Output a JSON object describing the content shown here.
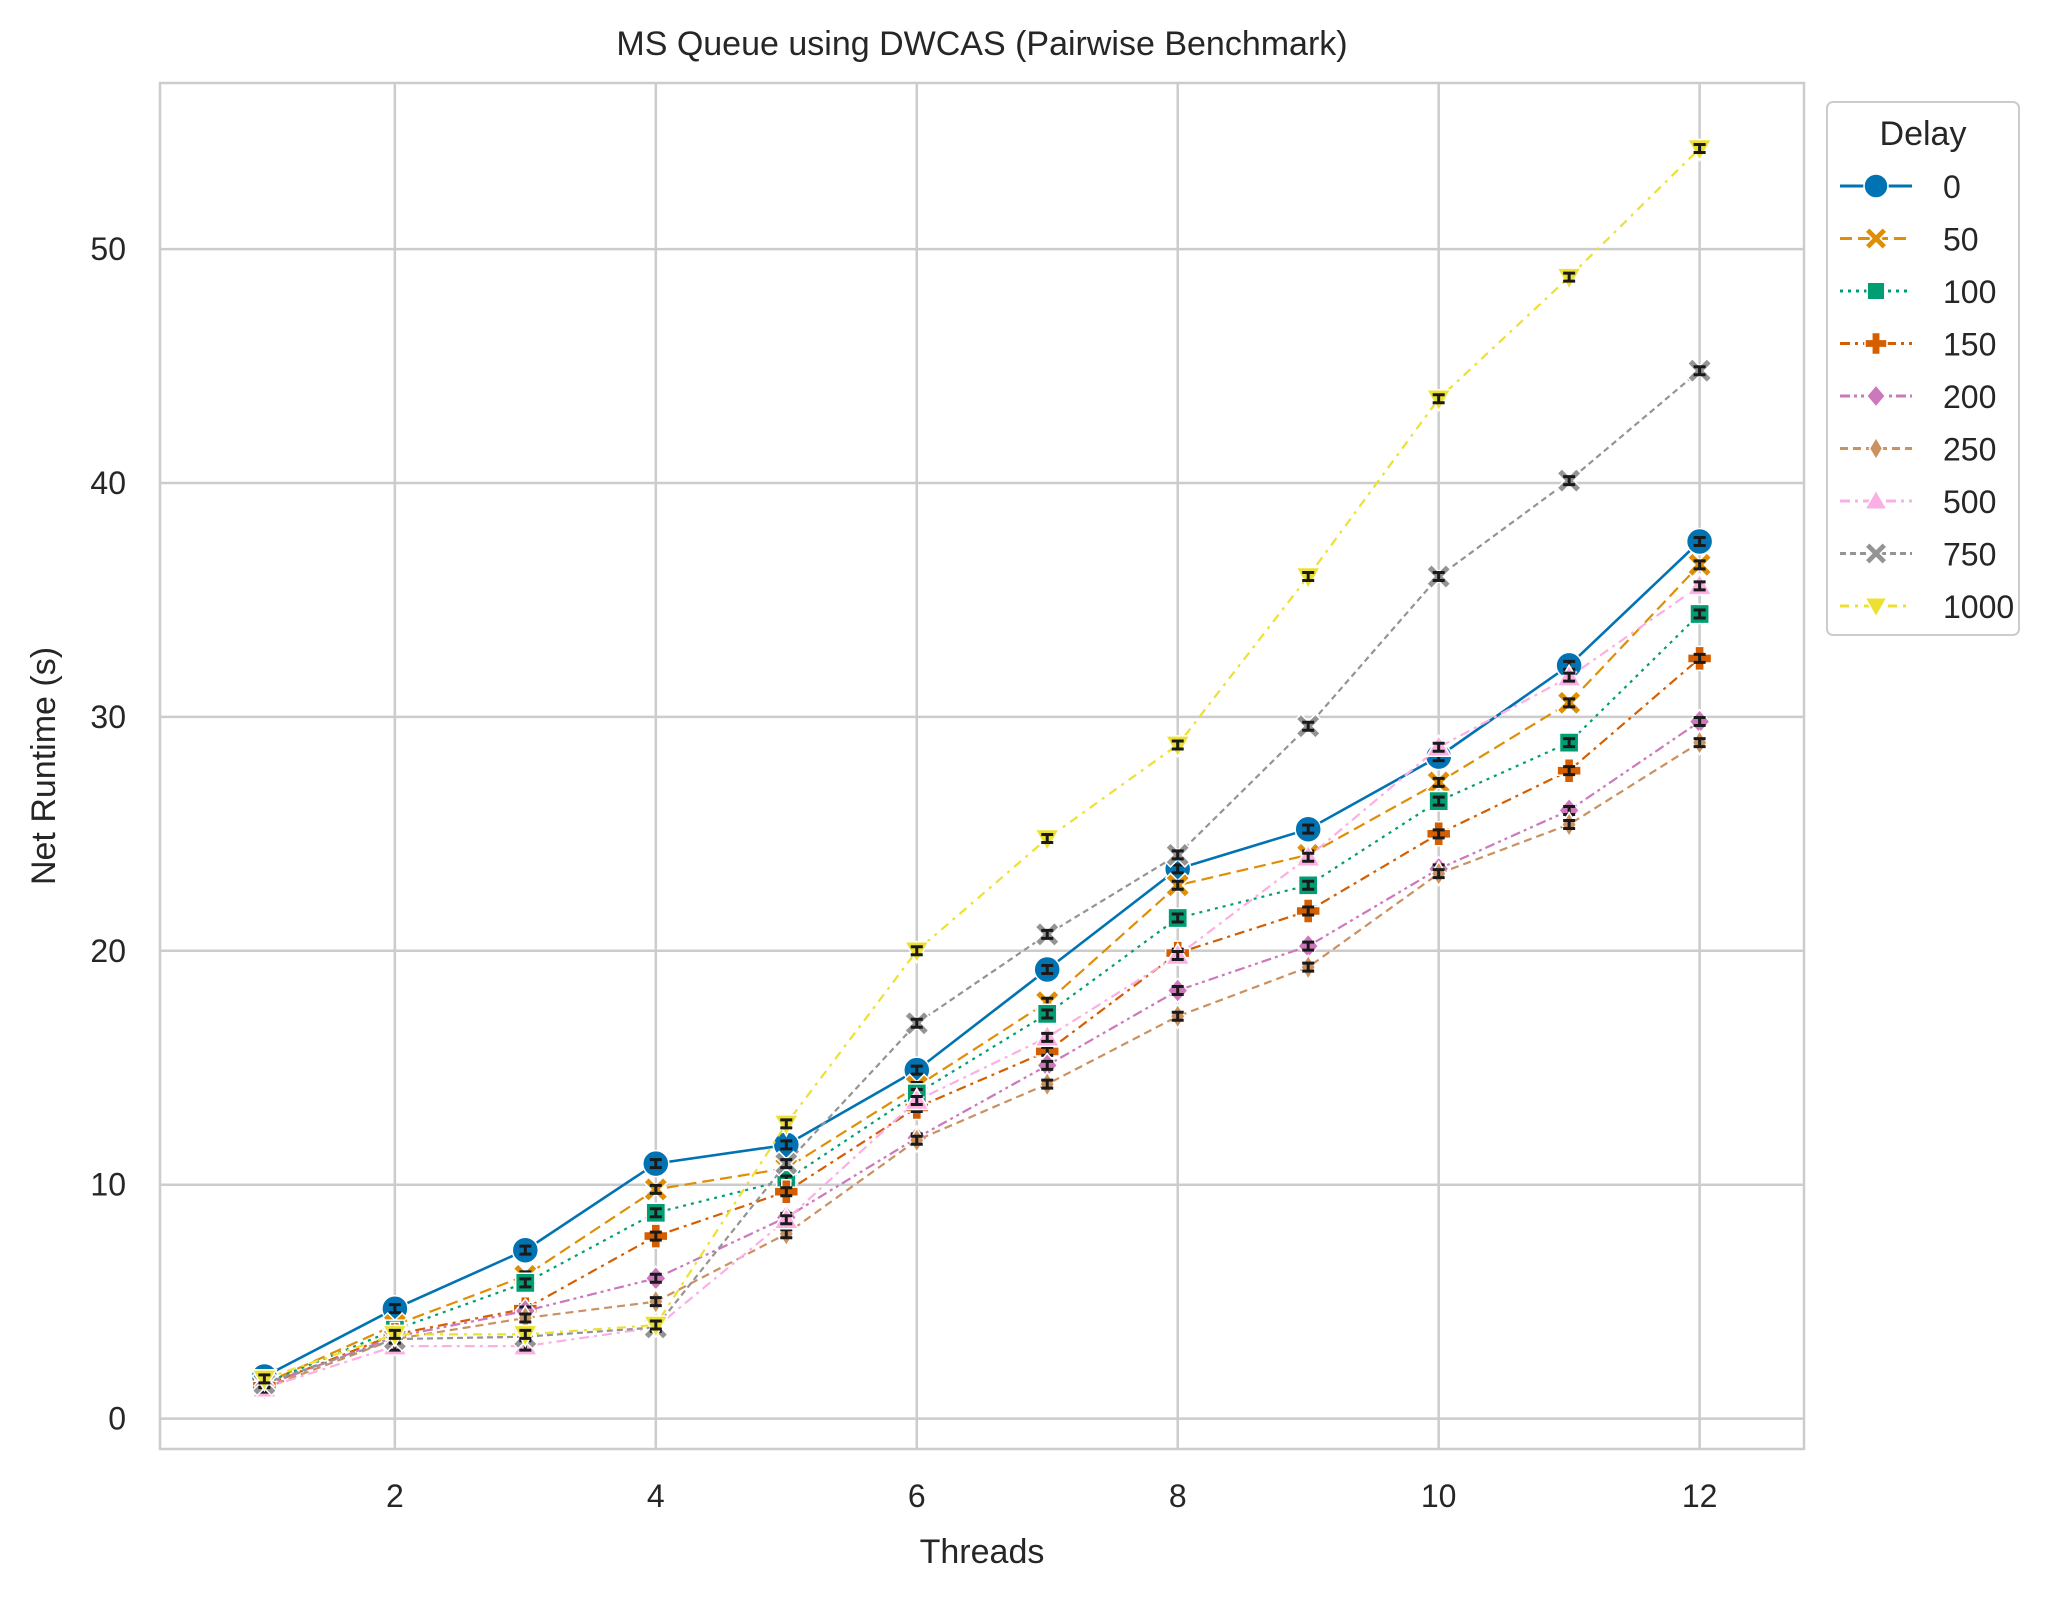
{
  "chart_data": {
    "type": "line",
    "title": "MS Queue using DWCAS (Pairwise Benchmark)",
    "xlabel": "Threads",
    "ylabel": "Net Runtime (s)",
    "xlim": [
      0.2,
      12.8
    ],
    "ylim": [
      -1.3,
      57.1
    ],
    "xticks": [
      2,
      4,
      6,
      8,
      10,
      12
    ],
    "yticks": [
      0,
      10,
      20,
      30,
      40,
      50
    ],
    "grid": true,
    "legend": {
      "title": "Delay",
      "placement": "outside-top-right"
    },
    "x": [
      1,
      2,
      3,
      4,
      5,
      6,
      7,
      8,
      9,
      10,
      11,
      12
    ],
    "series": [
      {
        "name": "0",
        "color": "#0173b2",
        "marker": "circle",
        "dash": "solid",
        "values": [
          1.8,
          4.7,
          7.2,
          10.9,
          11.7,
          14.9,
          19.2,
          23.5,
          25.2,
          28.3,
          32.2,
          37.5
        ]
      },
      {
        "name": "50",
        "color": "#de8f05",
        "marker": "x-filled",
        "dash": "dashed",
        "values": [
          1.5,
          4.0,
          6.1,
          9.8,
          10.7,
          14.2,
          17.8,
          22.8,
          24.1,
          27.2,
          30.6,
          36.5
        ]
      },
      {
        "name": "100",
        "color": "#029e73",
        "marker": "square",
        "dash": "dotted",
        "values": [
          1.5,
          3.8,
          5.8,
          8.8,
          10.2,
          13.9,
          17.3,
          21.4,
          22.8,
          26.4,
          28.9,
          34.4
        ]
      },
      {
        "name": "150",
        "color": "#d55e00",
        "marker": "plus-filled",
        "dash": "dash-dot",
        "values": [
          1.4,
          3.6,
          4.7,
          7.8,
          9.7,
          13.3,
          15.7,
          19.9,
          21.7,
          25.0,
          27.7,
          32.5
        ]
      },
      {
        "name": "200",
        "color": "#cc78bc",
        "marker": "diamond",
        "dash": "dash-dot-dot",
        "values": [
          1.4,
          3.5,
          4.6,
          6.0,
          8.6,
          12.0,
          15.1,
          18.3,
          20.2,
          23.5,
          26.0,
          29.8
        ]
      },
      {
        "name": "250",
        "color": "#ca9161",
        "marker": "thin-diamond",
        "dash": "long-dash",
        "values": [
          1.3,
          3.4,
          4.3,
          5.0,
          7.9,
          11.9,
          14.3,
          17.2,
          19.3,
          23.3,
          25.4,
          28.9
        ]
      },
      {
        "name": "500",
        "color": "#fbafe4",
        "marker": "triangle-up",
        "dash": "dash-dot",
        "values": [
          1.3,
          3.1,
          3.1,
          3.9,
          8.5,
          13.6,
          16.3,
          19.8,
          24.0,
          28.7,
          31.7,
          35.6
        ]
      },
      {
        "name": "750",
        "color": "#949494",
        "marker": "x-filled",
        "dash": "dashed-short",
        "values": [
          1.5,
          3.4,
          3.5,
          3.9,
          10.9,
          16.9,
          20.7,
          24.1,
          29.6,
          36.0,
          40.1,
          44.8
        ]
      },
      {
        "name": "1000",
        "color": "#ece133",
        "marker": "triangle-down",
        "dash": "dash-dot-loose",
        "values": [
          1.7,
          3.6,
          3.6,
          4.0,
          12.6,
          20.0,
          24.8,
          28.8,
          36.0,
          43.6,
          48.8,
          54.3
        ]
      }
    ]
  }
}
